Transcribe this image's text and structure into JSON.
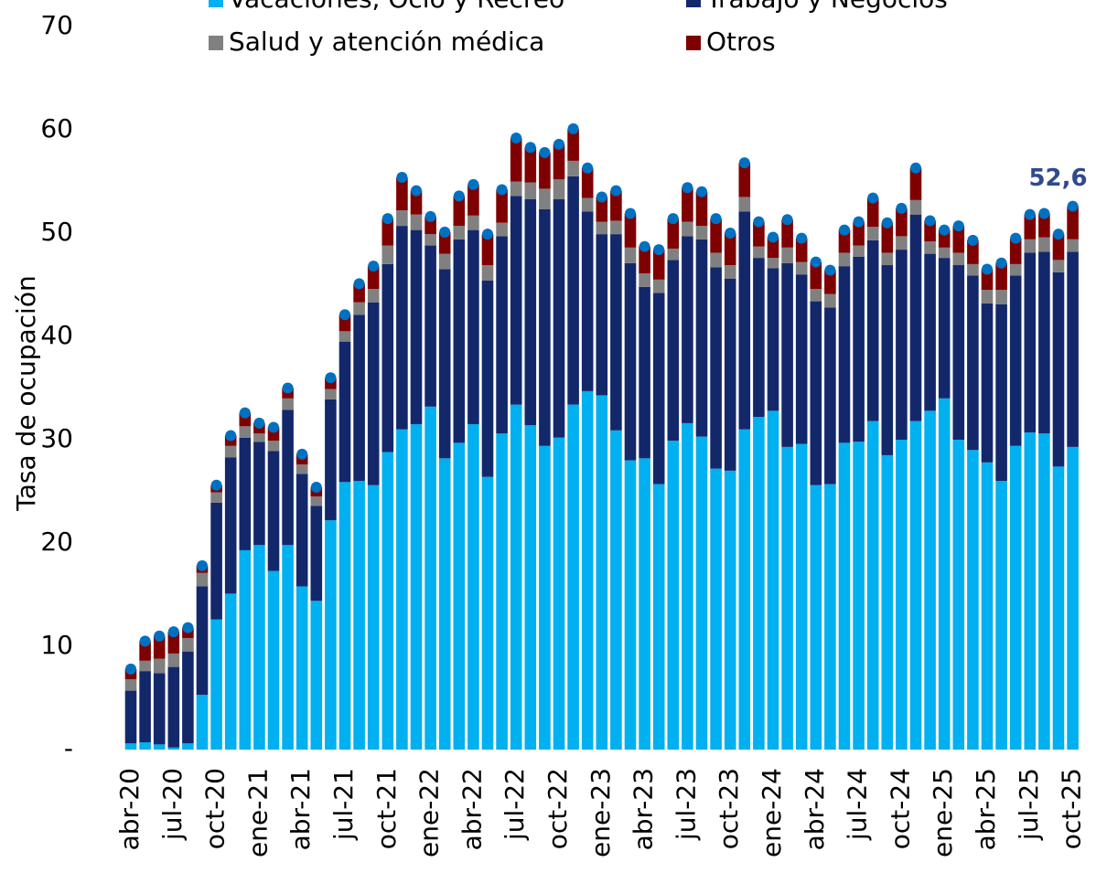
{
  "chart_data": {
    "type": "stacked_bar",
    "y_label": "Tasa de ocupación",
    "annotation": "52,6",
    "ylim": [
      0,
      70
    ],
    "yticks": [
      {
        "value": 0,
        "label": "-"
      },
      10,
      20,
      30,
      40,
      50,
      60,
      70
    ],
    "legend": "top",
    "marker_color": "#0070c0",
    "categories": [
      "abr-20",
      null,
      null,
      "jul-20",
      null,
      null,
      "oct-20",
      null,
      null,
      "ene-21",
      null,
      null,
      "abr-21",
      null,
      null,
      "jul-21",
      null,
      null,
      "oct-21",
      null,
      null,
      "ene-22",
      null,
      null,
      "abr-22",
      null,
      null,
      "jul-22",
      null,
      null,
      "oct-22",
      null,
      null,
      "ene-23",
      null,
      null,
      "abr-23",
      null,
      null,
      "jul-23",
      null,
      null,
      "oct-23",
      null,
      null,
      "ene-24",
      null,
      null,
      "abr-24",
      null,
      null,
      "jul-24",
      null,
      null,
      "oct-24",
      null,
      null,
      "ene-25",
      null,
      null,
      "abr-25",
      null,
      null,
      "jul-25",
      null,
      null,
      "oct-25"
    ],
    "series": [
      {
        "name": "Vacaciones, Ocio y Recreo",
        "color": "#00b0f0",
        "values": [
          0.6,
          0.7,
          0.5,
          0.2,
          0.6,
          5.3,
          12.6,
          15.1,
          19.3,
          19.8,
          17.3,
          19.8,
          15.8,
          14.4,
          22.2,
          25.9,
          26.0,
          25.6,
          28.8,
          31.0,
          31.5,
          33.2,
          28.2,
          29.7,
          31.5,
          26.4,
          30.6,
          33.4,
          31.4,
          29.4,
          30.2,
          33.4,
          34.7,
          34.3,
          30.9,
          28.0,
          28.2,
          25.7,
          29.9,
          31.6,
          30.3,
          27.2,
          27.0,
          31.0,
          32.2,
          32.8,
          29.3,
          29.6,
          25.6,
          25.7,
          29.7,
          29.8,
          31.8,
          28.5,
          30.0,
          31.8,
          32.8,
          34.0,
          30.0,
          29.0,
          27.8,
          26.0,
          29.4,
          30.7,
          30.6,
          27.4,
          29.3
        ]
      },
      {
        "name": "Trabajo y Negocios",
        "color": "#13286b",
        "values": [
          5.1,
          6.9,
          6.9,
          7.8,
          8.9,
          10.5,
          11.3,
          13.2,
          10.9,
          10.0,
          11.6,
          13.1,
          10.9,
          9.2,
          11.7,
          13.6,
          16.1,
          17.7,
          18.2,
          19.7,
          18.8,
          15.6,
          18.3,
          19.7,
          18.8,
          19.0,
          19.1,
          20.2,
          21.9,
          22.9,
          23.1,
          22.1,
          17.4,
          15.6,
          19.0,
          19.1,
          16.6,
          18.5,
          17.5,
          18.1,
          19.1,
          19.5,
          18.6,
          21.1,
          15.4,
          13.8,
          17.8,
          16.4,
          17.8,
          17.1,
          17.1,
          17.9,
          17.5,
          18.4,
          18.4,
          20.0,
          15.2,
          13.6,
          16.9,
          16.9,
          15.4,
          17.1,
          16.5,
          17.4,
          17.6,
          18.8,
          18.9
        ]
      },
      {
        "name": "Salud y atención médica",
        "color": "#808080",
        "values": [
          1.1,
          1.0,
          1.4,
          1.3,
          1.3,
          1.3,
          1.0,
          1.1,
          1.1,
          0.8,
          1.0,
          1.1,
          0.9,
          0.9,
          1.0,
          1.0,
          1.2,
          1.3,
          1.8,
          1.5,
          1.5,
          1.1,
          1.5,
          1.3,
          1.4,
          1.5,
          1.3,
          1.4,
          1.6,
          2.0,
          1.9,
          1.5,
          1.3,
          1.2,
          1.3,
          1.5,
          1.3,
          1.3,
          1.1,
          1.4,
          1.3,
          1.4,
          1.3,
          1.4,
          1.1,
          1.0,
          1.5,
          1.2,
          1.2,
          1.3,
          1.3,
          1.1,
          1.3,
          1.2,
          1.3,
          1.4,
          1.2,
          1.0,
          1.2,
          1.1,
          1.3,
          1.4,
          1.1,
          1.3,
          1.4,
          1.2,
          1.2
        ]
      },
      {
        "name": "Otros",
        "color": "#7f0000",
        "values": [
          1.0,
          1.9,
          2.2,
          2.1,
          1.0,
          0.7,
          0.7,
          1.0,
          1.3,
          1.0,
          1.3,
          1.0,
          1.0,
          0.9,
          1.1,
          1.6,
          1.8,
          2.2,
          2.6,
          3.2,
          2.3,
          1.7,
          2.1,
          2.9,
          3.0,
          3.0,
          3.2,
          4.2,
          3.4,
          3.5,
          3.4,
          3.1,
          2.9,
          2.4,
          2.9,
          3.3,
          2.6,
          2.9,
          2.9,
          3.3,
          3.3,
          3.3,
          3.1,
          3.3,
          2.4,
          2.0,
          2.7,
          2.3,
          2.6,
          2.3,
          2.2,
          2.3,
          2.8,
          2.9,
          2.7,
          3.1,
          2.0,
          1.7,
          2.6,
          2.3,
          2.0,
          2.6,
          2.5,
          2.4,
          2.3,
          2.5,
          3.2
        ]
      }
    ]
  }
}
